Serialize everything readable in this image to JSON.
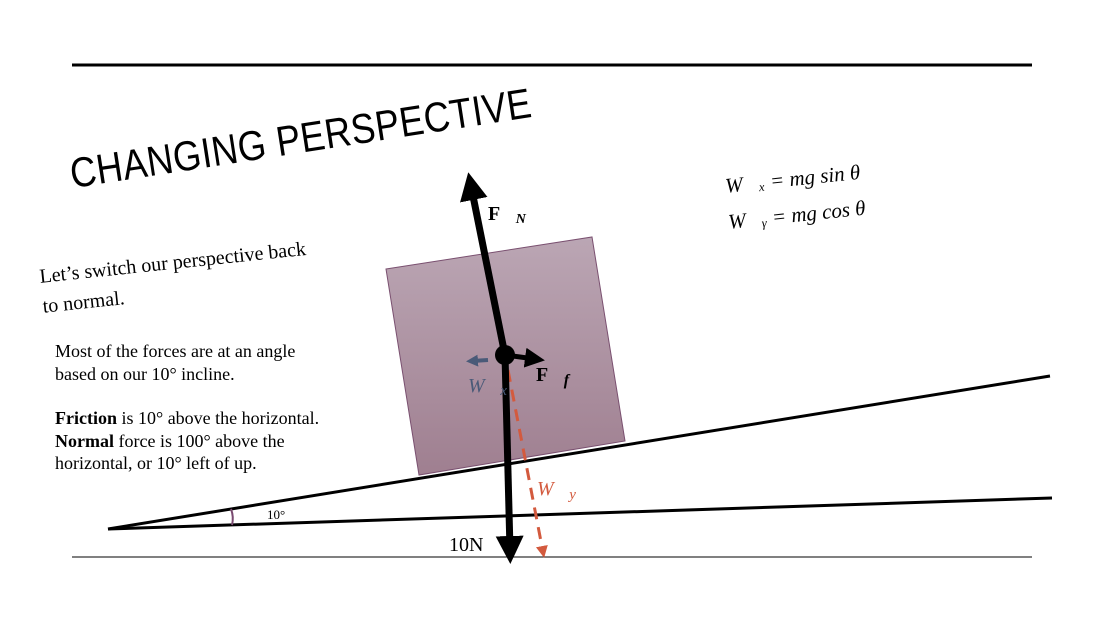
{
  "title": "CHANGING PERSPECTIVE",
  "intro": [
    "Let’s switch our perspective back",
    "to normal."
  ],
  "body": {
    "line1": "Most of the forces are at an angle",
    "line2": "based on our 10° incline.",
    "friction_bold": "Friction",
    "friction_rest": " is 10° above the horizontal.",
    "normal_bold": "Normal",
    "normal_rest": " force is 100° above the",
    "normal_line2": "horizontal, or 10° left of up."
  },
  "equations": {
    "wx": "W⃗ₓ = mg sin θ",
    "wy": "W⃗ᵧ = mg cos θ"
  },
  "diagram": {
    "angle_label": "10°",
    "weight_label": "10N",
    "fn_label": "F⃗",
    "fn_sub": "N",
    "ff_label": "F⃗",
    "ff_sub": "f",
    "wx_label": "W⃗",
    "wx_sub": "x",
    "wy_label": "W⃗",
    "wy_sub": "y",
    "colors": {
      "block": "#a88898",
      "wx": "#4a5a78",
      "wy": "#d35a3e",
      "angle_arc": "#7a4a70"
    }
  }
}
